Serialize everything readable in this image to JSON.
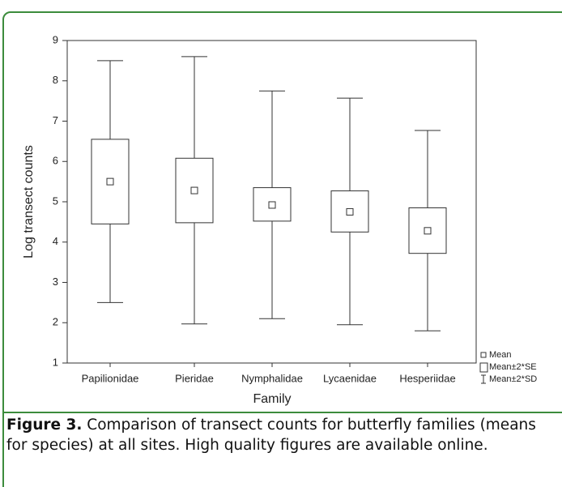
{
  "chart_data": {
    "type": "box",
    "y_label": "Log transect counts",
    "x_label": "Family",
    "categories": [
      "Papilionidae",
      "Pieridae",
      "Nymphalidae",
      "Lycaenidae",
      "Hesperiidae"
    ],
    "mean": [
      5.5,
      5.28,
      4.92,
      4.75,
      4.28
    ],
    "se_low": [
      4.45,
      4.48,
      4.52,
      4.25,
      3.72
    ],
    "se_high": [
      6.55,
      6.08,
      5.35,
      5.27,
      4.85
    ],
    "sd_low": [
      2.5,
      1.97,
      2.1,
      1.95,
      1.8
    ],
    "sd_high": [
      8.5,
      8.6,
      7.75,
      7.57,
      6.77
    ],
    "ylim": [
      1,
      9
    ],
    "yticks": [
      1,
      2,
      3,
      4,
      5,
      6,
      7,
      8,
      9
    ],
    "legend": [
      "Mean",
      "Mean±2*SE",
      "Mean±2*SD"
    ],
    "color": "#333333"
  },
  "caption": {
    "label": "Figure 3.",
    "text": "Comparison of transect counts for butterfly families (means for species) at all sites. High quality figures are available online."
  }
}
